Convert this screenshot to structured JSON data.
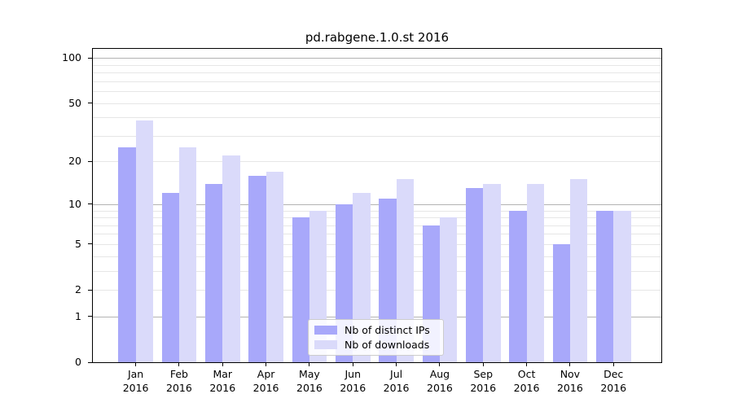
{
  "chart_data": {
    "type": "bar",
    "title": "pd.rabgene.1.0.st 2016",
    "categories": [
      "Jan",
      "Feb",
      "Mar",
      "Apr",
      "May",
      "Jun",
      "Jul",
      "Aug",
      "Sep",
      "Oct",
      "Nov",
      "Dec"
    ],
    "category_year": "2016",
    "series": [
      {
        "name": "Nb of distinct IPs",
        "color": "#a8a8fa",
        "values": [
          25,
          12,
          14,
          16,
          8,
          10,
          11,
          7,
          13,
          9,
          5,
          9
        ]
      },
      {
        "name": "Nb of downloads",
        "color": "#dadafa",
        "values": [
          38,
          25,
          22,
          17,
          9,
          12,
          15,
          8,
          14,
          14,
          15,
          9
        ]
      }
    ],
    "xlabel": "",
    "ylabel": "",
    "yscale": "log1p",
    "ylim": [
      0,
      115
    ],
    "yticks": [
      0,
      1,
      2,
      5,
      10,
      20,
      50,
      100
    ],
    "grid_major": [
      1,
      10,
      100
    ],
    "grid_minor": [
      2,
      3,
      4,
      5,
      6,
      7,
      8,
      9,
      20,
      30,
      40,
      50,
      60,
      70,
      80,
      90
    ],
    "grid": true,
    "legend_position": "lower center",
    "colors": {
      "grid_major": "#b3b3b3",
      "grid_minor": "#e6e6e6",
      "axis": "#000000",
      "background": "#ffffff",
      "text": "#000000"
    }
  }
}
